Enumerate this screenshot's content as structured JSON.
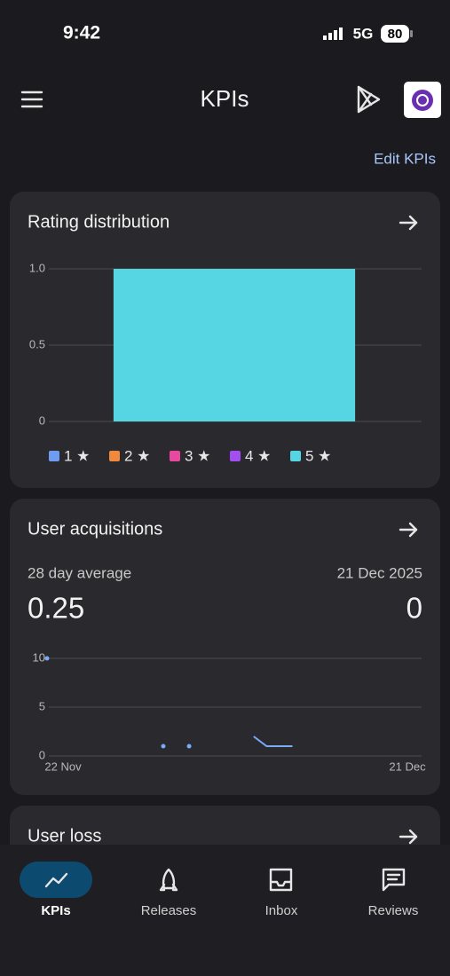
{
  "status": {
    "time": "9:42",
    "network": "5G",
    "battery": "80"
  },
  "header": {
    "title": "KPIs"
  },
  "edit_link": "Edit KPIs",
  "rating_card": {
    "title": "Rating distribution",
    "chart_data": {
      "type": "stacked_bar",
      "categories": [
        null
      ],
      "series": [
        {
          "name": "1 ★",
          "color": "#6f9cf0",
          "values": [
            0
          ]
        },
        {
          "name": "2 ★",
          "color": "#f0883e",
          "values": [
            0
          ]
        },
        {
          "name": "3 ★",
          "color": "#e8499e",
          "values": [
            0
          ]
        },
        {
          "name": "4 ★",
          "color": "#a24ef0",
          "values": [
            0
          ]
        },
        {
          "name": "5 ★",
          "color": "#56d6e3",
          "values": [
            1
          ]
        }
      ],
      "ylim": [
        0,
        1
      ],
      "yticks": [
        0,
        0.5,
        {
          "value": 1,
          "label": "1.0"
        }
      ],
      "grid": true,
      "legend": "bottom"
    }
  },
  "acquisitions_card": {
    "title": "User acquisitions",
    "average_label": "28 day average",
    "date_label": "21 Dec 2025",
    "average_value": "0.25",
    "date_value": "0",
    "chart_data": {
      "type": "line",
      "categories": [
        "22 Nov",
        null,
        null,
        null,
        null,
        null,
        null,
        null,
        null,
        null,
        null,
        null,
        null,
        null,
        null,
        null,
        null,
        null,
        null,
        null,
        null,
        null,
        null,
        null,
        null,
        null,
        null,
        null,
        null,
        "21 Dec"
      ],
      "series": [
        {
          "color": "#7baaf7",
          "values": [
            10,
            null,
            null,
            null,
            null,
            null,
            null,
            null,
            null,
            1,
            null,
            1,
            null,
            null,
            null,
            null,
            2,
            1,
            1,
            1,
            null,
            null,
            null,
            null,
            null,
            null,
            null,
            null,
            null,
            null
          ]
        }
      ],
      "ylim": [
        0,
        10
      ],
      "yticks": [
        0,
        5,
        10
      ],
      "grid": true
    }
  },
  "loss_card": {
    "title": "User loss"
  },
  "nav": {
    "items": [
      "KPIs",
      "Releases",
      "Inbox",
      "Reviews"
    ],
    "active": 0
  }
}
